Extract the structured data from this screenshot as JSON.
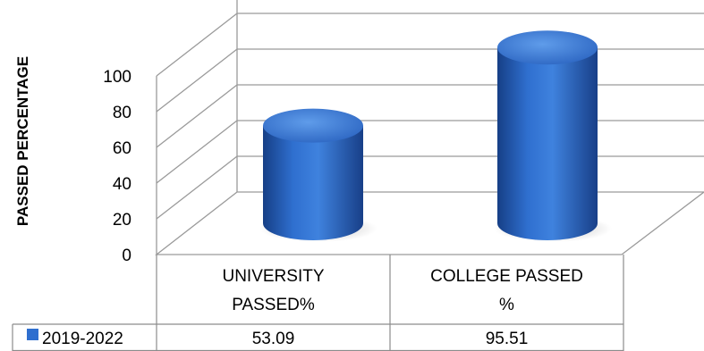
{
  "chart_data": {
    "type": "bar",
    "style": "3d-cylinder",
    "categories": [
      [
        "UNIVERSITY",
        "PASSED%"
      ],
      [
        "COLLEGE PASSED",
        "%"
      ]
    ],
    "series": [
      {
        "name": "2019-2022",
        "values": [
          53.09,
          95.51
        ],
        "color": "#2f6fcf"
      }
    ],
    "data_labels": [
      "53.09",
      "95.51"
    ],
    "ylabel": "PASSED PERCENTAGE",
    "xlabel": "",
    "title": "",
    "ylim": [
      0,
      100
    ],
    "yticks": [
      0,
      20,
      40,
      60,
      80,
      100
    ],
    "grid": true,
    "legend": "data-table",
    "colors": {
      "bar": "#2f6fcf",
      "bar_dark": "#163f86",
      "bar_light": "#5f9cea",
      "grid": "#9a9a9a"
    }
  }
}
